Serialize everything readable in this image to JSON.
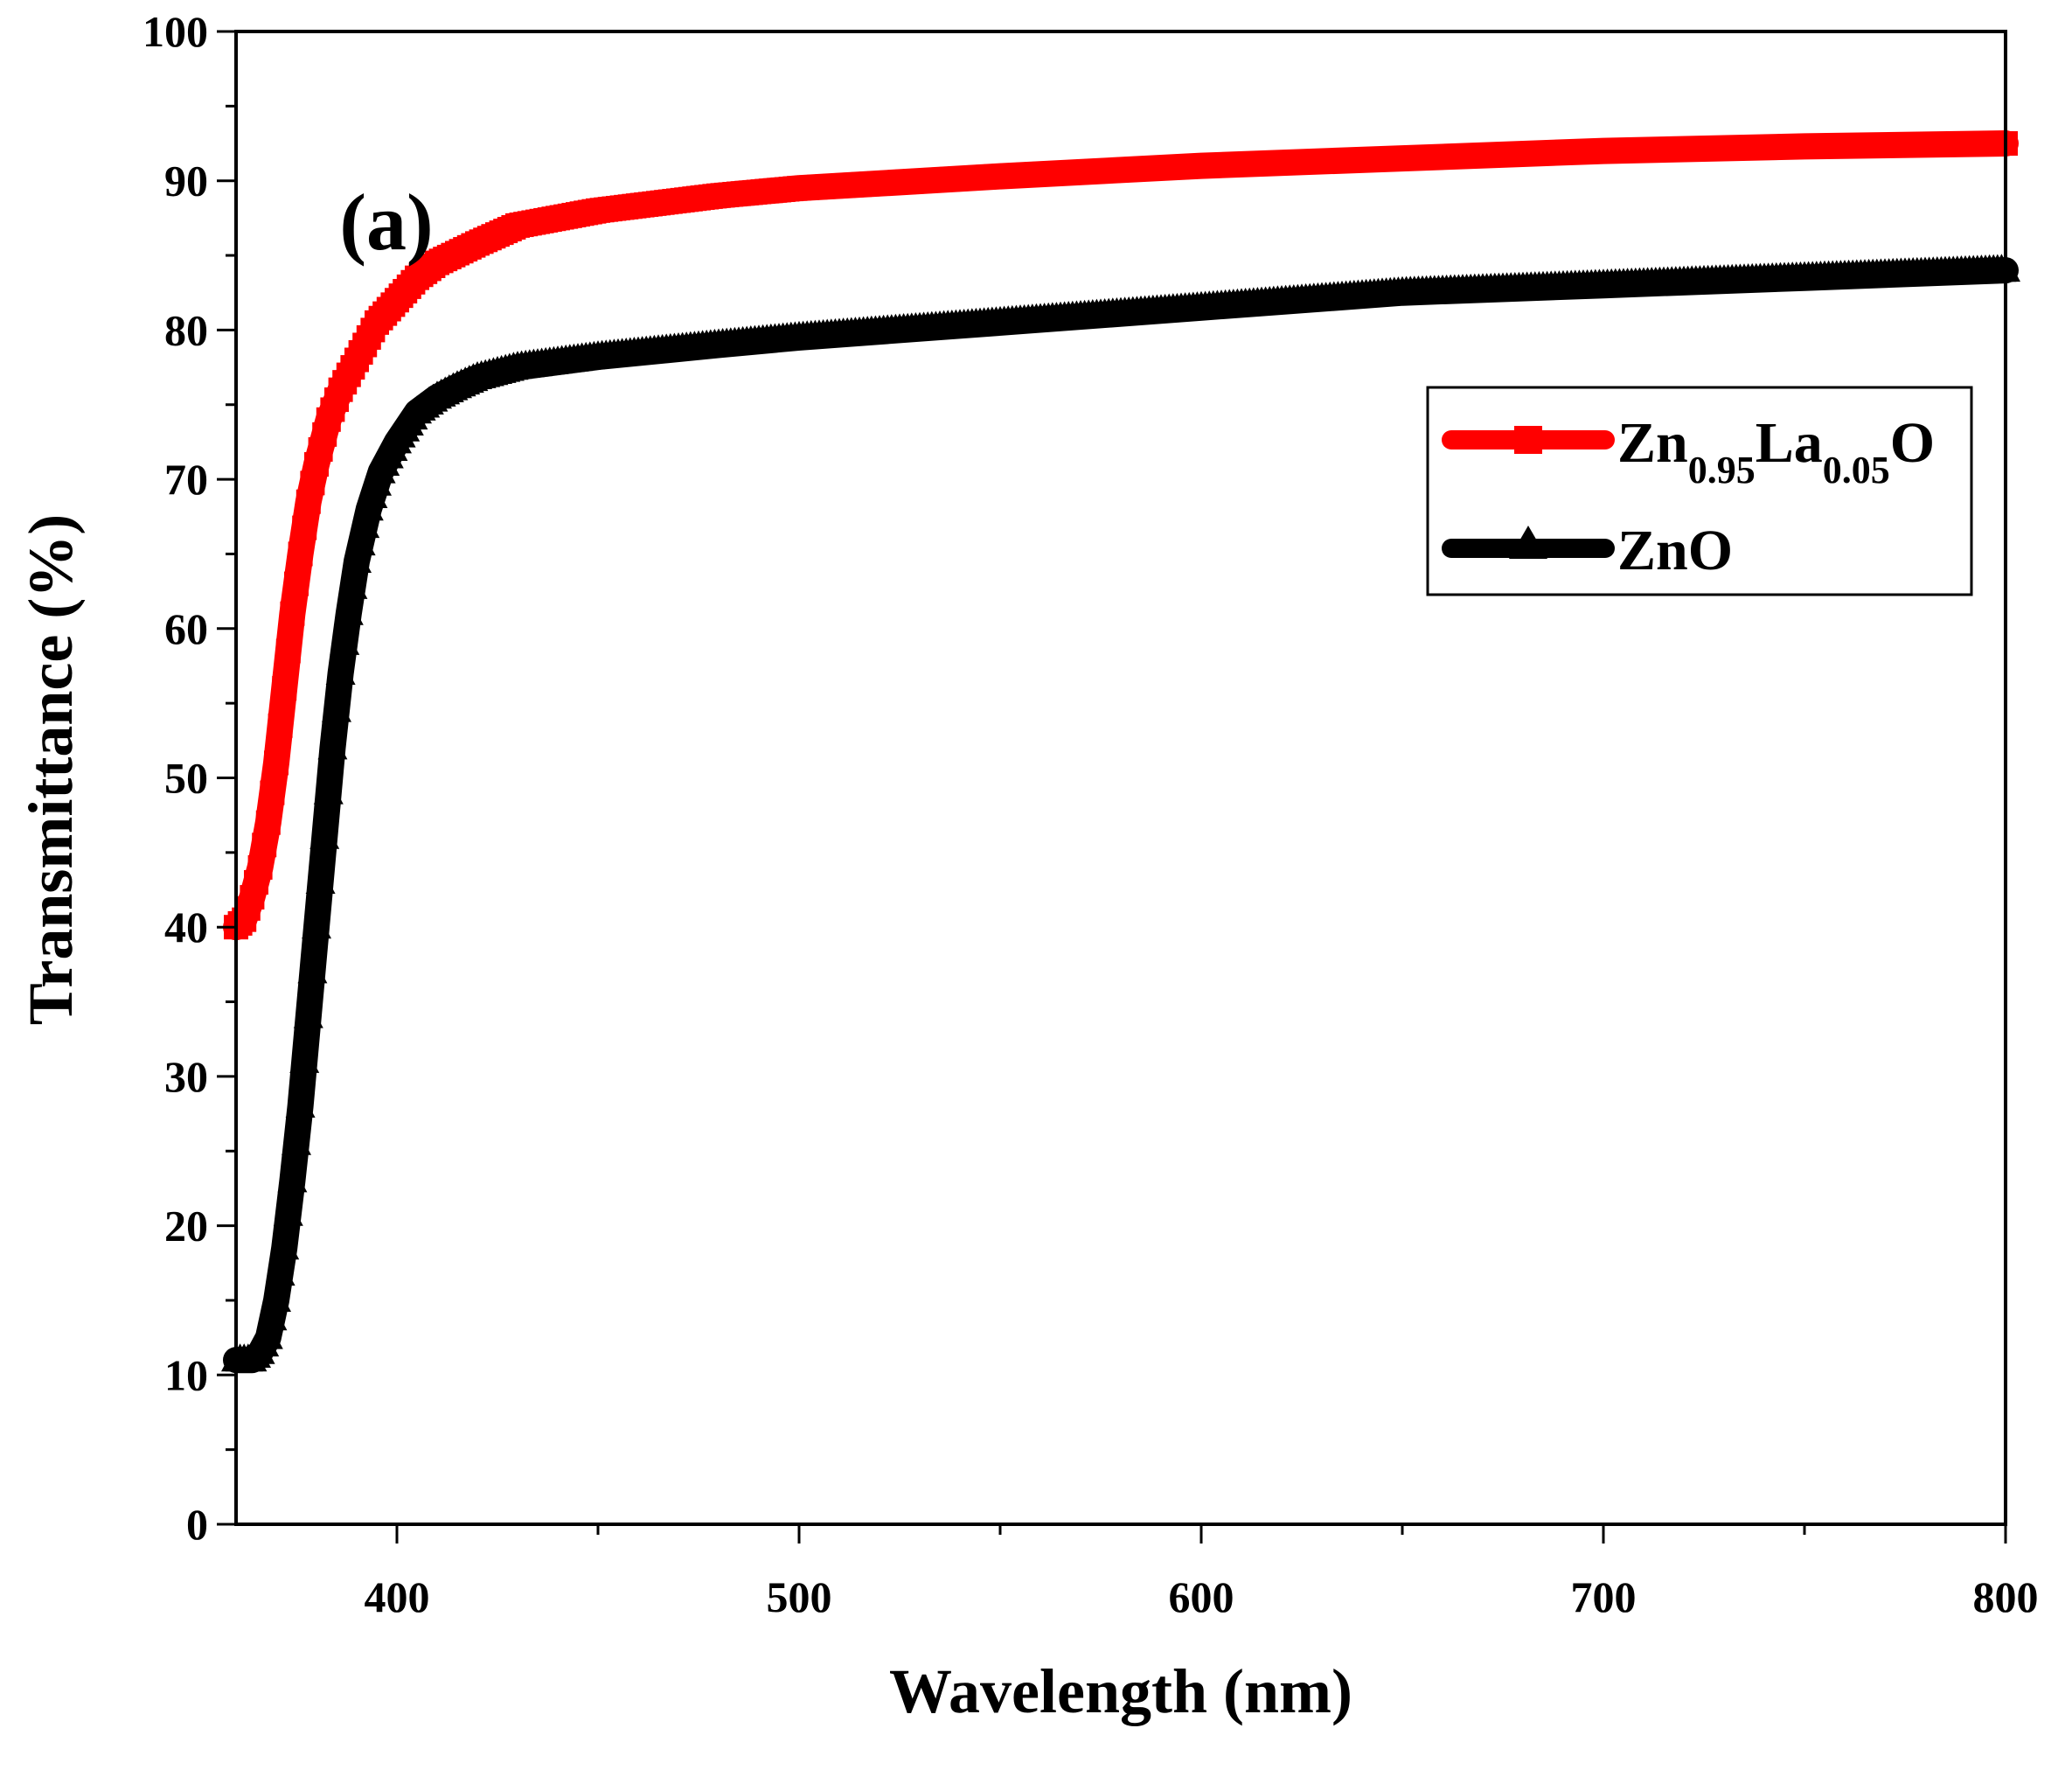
{
  "chart_data": {
    "type": "line",
    "panel_label": "(a)",
    "xlabel": "Wavelength (nm)",
    "ylabel": "Transmittance (%)",
    "xlim": [
      360,
      800
    ],
    "ylim": [
      0,
      100
    ],
    "x_ticks": [
      400,
      500,
      600,
      700,
      800
    ],
    "y_ticks": [
      0,
      10,
      20,
      30,
      40,
      50,
      60,
      70,
      80,
      90,
      100
    ],
    "grid": false,
    "legend_position": "top-right",
    "series": [
      {
        "name": "Zn0.95La0.05O",
        "legend_label": {
          "main1": "Zn",
          "sub1": "0.95",
          "main2": "La",
          "sub2": "0.05",
          "main3": "O"
        },
        "color": "#ff0000",
        "marker": "square",
        "x": [
          360,
          362,
          364,
          366,
          368,
          370,
          372,
          374,
          376,
          378,
          380,
          383,
          386,
          390,
          395,
          400,
          405,
          410,
          420,
          430,
          450,
          480,
          500,
          550,
          600,
          650,
          700,
          750,
          800
        ],
        "y": [
          40,
          40.5,
          42,
          44,
          47,
          51,
          56,
          61,
          65,
          68.5,
          71,
          74,
          76,
          78,
          80.5,
          82,
          83.5,
          84.5,
          85.8,
          87,
          88,
          89,
          89.5,
          90.3,
          91,
          91.5,
          92,
          92.3,
          92.5
        ]
      },
      {
        "name": "ZnO",
        "legend_label": {
          "main1": "ZnO"
        },
        "color": "#000000",
        "marker": "triangle",
        "x": [
          360,
          362,
          364,
          366,
          368,
          370,
          372,
          374,
          376,
          378,
          380,
          382,
          384,
          386,
          388,
          390,
          393,
          396,
          400,
          405,
          410,
          415,
          420,
          430,
          450,
          480,
          500,
          550,
          600,
          650,
          700,
          750,
          800
        ],
        "y": [
          11,
          11,
          11,
          11.5,
          12.5,
          15,
          18.5,
          23,
          28,
          34,
          40,
          46,
          52,
          57,
          61,
          64.5,
          68,
          70.5,
          72.5,
          74.5,
          75.5,
          76.2,
          76.8,
          77.5,
          78.2,
          79,
          79.5,
          80.5,
          81.5,
          82.5,
          83,
          83.5,
          84
        ]
      }
    ]
  }
}
